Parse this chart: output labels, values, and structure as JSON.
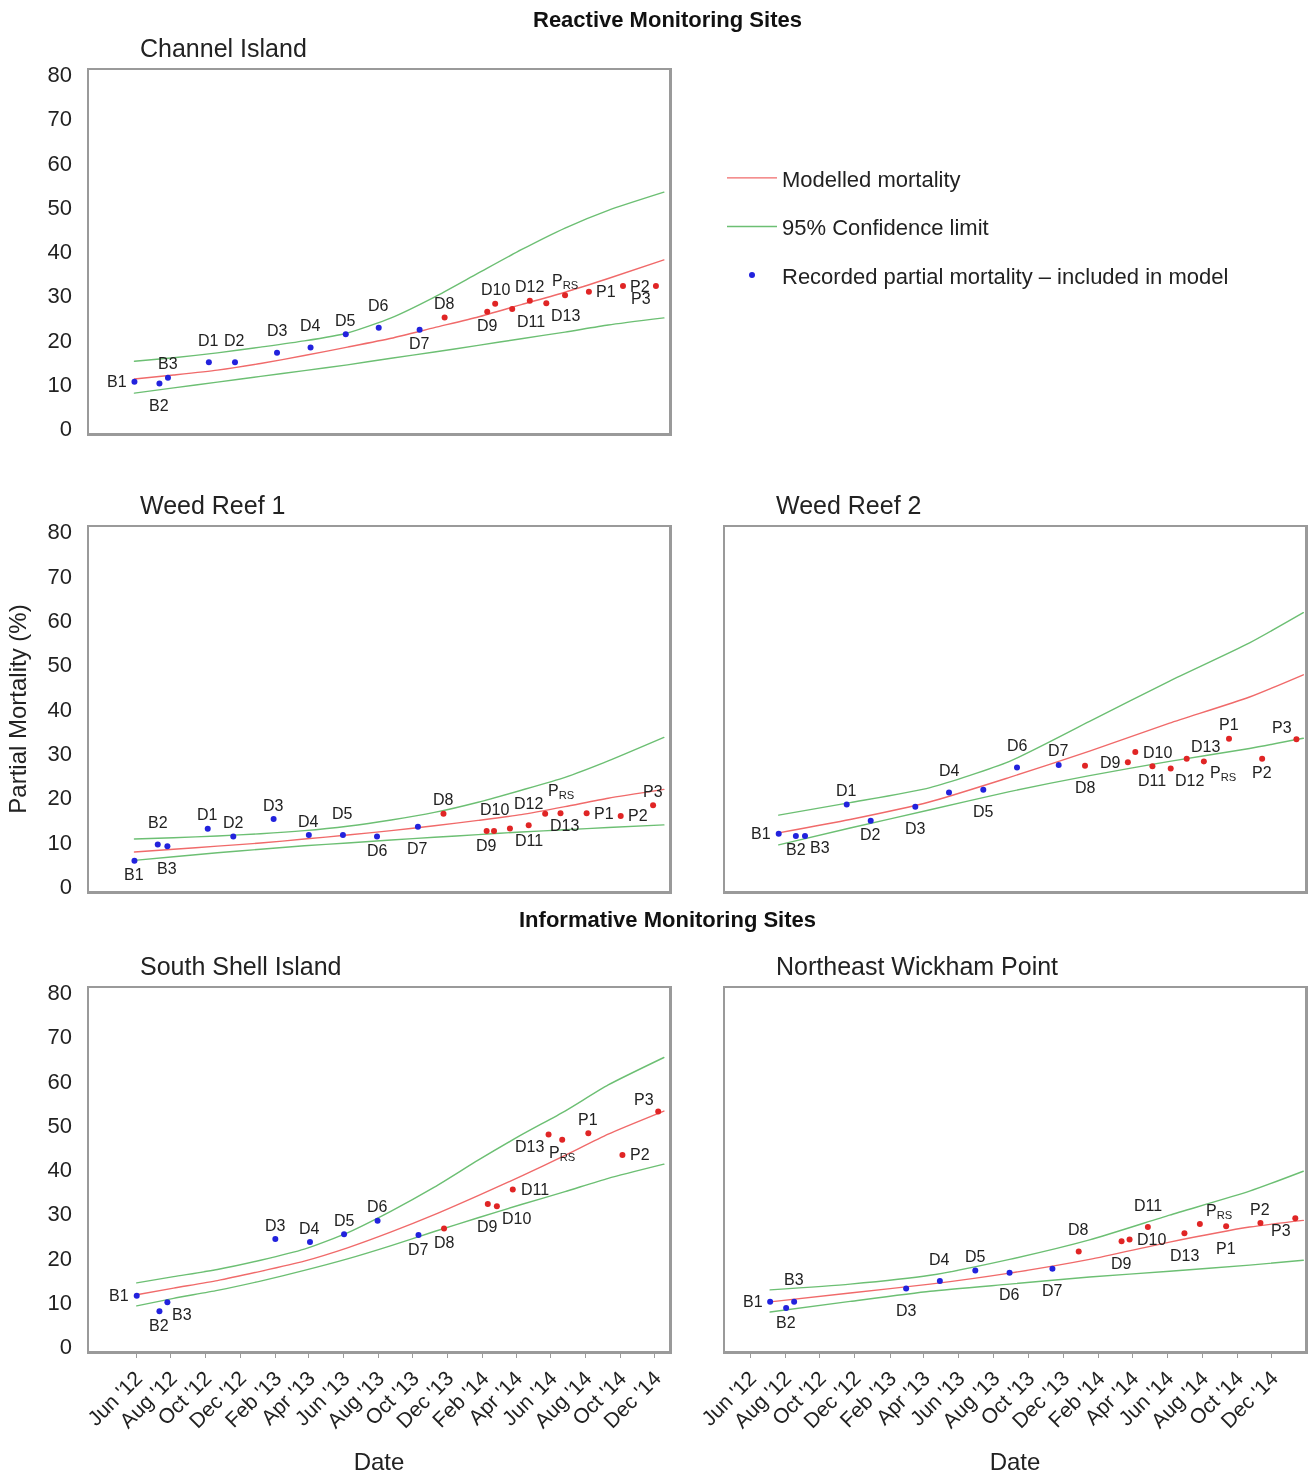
{
  "chart_data": [
    {
      "type": "scatter",
      "title": "Channel Island",
      "tick_labels": "y",
      "legend": "right",
      "xlim": [
        "2012-03-10",
        "2014-12-26"
      ],
      "ylim": [
        -1,
        81
      ],
      "yticks": [
        0,
        10,
        20,
        30,
        40,
        50,
        60,
        70,
        80
      ],
      "series": [
        {
          "name": "Modelled mortality",
          "type": "line",
          "marker": "none",
          "color": "#f06a6a",
          "x": [
            "2012-05-29",
            "2012-08-06",
            "2012-10-22",
            "2013-01-06",
            "2013-03-24",
            "2013-06-08",
            "2013-08-24",
            "2013-11-08",
            "2014-01-24",
            "2014-04-10",
            "2014-06-26",
            "2014-09-10",
            "2014-12-17"
          ],
          "values": [
            11.2,
            12.1,
            13.2,
            14.7,
            16.5,
            18.4,
            20.4,
            22.8,
            25.2,
            28.0,
            30.8,
            33.9,
            38.1
          ]
        },
        {
          "name": "95% Confidence limit",
          "type": "line",
          "marker": "none",
          "color": "#6cbf73",
          "x": [
            "2012-05-29",
            "2012-08-06",
            "2012-10-22",
            "2013-01-06",
            "2013-03-24",
            "2013-06-08",
            "2013-08-24",
            "2013-11-08",
            "2014-01-24",
            "2014-04-10",
            "2014-06-26",
            "2014-09-10",
            "2014-12-17"
          ],
          "values": [
            15.2,
            16.0,
            17.1,
            18.4,
            19.8,
            21.6,
            25.0,
            29.7,
            35.1,
            40.4,
            45.3,
            49.3,
            53.4
          ]
        },
        {
          "type": "line",
          "marker": "none",
          "color": "#6cbf73",
          "x": [
            "2012-05-29",
            "2012-08-06",
            "2012-10-22",
            "2013-01-06",
            "2013-03-24",
            "2013-06-08",
            "2013-08-24",
            "2013-11-08",
            "2014-01-24",
            "2014-04-10",
            "2014-06-26",
            "2014-09-10",
            "2014-12-17"
          ],
          "values": [
            8.0,
            9.2,
            10.5,
            11.8,
            13.1,
            14.4,
            15.9,
            17.3,
            18.8,
            20.3,
            21.8,
            23.4,
            25.0
          ]
        },
        {
          "name": "Recorded partial mortality – included in model",
          "type": "scatter",
          "marker": "circle",
          "color": "#2222dd",
          "x": [
            "2012-05-29",
            "2012-07-12",
            "2012-07-27",
            "2012-10-07",
            "2012-11-22",
            "2013-02-04",
            "2013-04-04",
            "2013-06-05",
            "2013-08-02",
            "2013-10-13"
          ],
          "values": [
            10.6,
            10.2,
            11.5,
            15.0,
            15.0,
            17.1,
            18.3,
            21.3,
            22.8,
            22.3
          ]
        },
        {
          "type": "scatter",
          "marker": "circle",
          "color": "#e02525",
          "x": [
            "2013-11-26",
            "2014-02-09",
            "2014-02-23",
            "2014-03-25",
            "2014-04-25",
            "2014-05-24",
            "2014-06-26",
            "2014-08-07",
            "2014-10-06",
            "2014-12-03"
          ],
          "values": [
            25.1,
            26.4,
            28.2,
            27.0,
            28.9,
            28.3,
            30.1,
            30.9,
            32.2,
            32.2
          ]
        }
      ],
      "annotations": [
        "Reactive Monitoring Sites",
        {
          "text": "B1",
          "x": "2012-05-29",
          "y": 10.6
        },
        {
          "text": "B2",
          "x": "2012-07-12",
          "y": 10.2
        },
        {
          "text": "B3",
          "x": "2012-07-27",
          "y": 11.5
        },
        {
          "text": "D1",
          "x": "2012-10-07",
          "y": 15.0
        },
        {
          "text": "D2",
          "x": "2012-11-22",
          "y": 15.0
        },
        {
          "text": "D3",
          "x": "2013-02-04",
          "y": 17.1
        },
        {
          "text": "D4",
          "x": "2013-04-04",
          "y": 18.3
        },
        {
          "text": "D5",
          "x": "2013-06-05",
          "y": 21.3
        },
        {
          "text": "D6",
          "x": "2013-08-02",
          "y": 22.8
        },
        {
          "text": "D7",
          "x": "2013-10-13",
          "y": 22.3
        },
        {
          "text": "D8",
          "x": "2013-11-26",
          "y": 25.1
        },
        {
          "text": "D9",
          "x": "2014-02-09",
          "y": 26.4
        },
        {
          "text": "D10",
          "x": "2014-02-23",
          "y": 28.2
        },
        {
          "text": "D11",
          "x": "2014-03-25",
          "y": 27.0
        },
        {
          "text": "D12",
          "x": "2014-04-25",
          "y": 28.9
        },
        {
          "text": "D13",
          "x": "2014-05-24",
          "y": 28.3
        },
        {
          "text": "P$_{RS}$",
          "x": "2014-06-26",
          "y": 30.1
        },
        {
          "text": "P1",
          "x": "2014-08-07",
          "y": 30.9
        },
        {
          "text": "P2",
          "x": "2014-10-06",
          "y": 32.2
        },
        {
          "text": "P3",
          "x": "2014-12-03",
          "y": 32.2
        }
      ]
    },
    {
      "type": "scatter",
      "title": "Weed Reef 1",
      "ylabel": "Partial Mortality (%)",
      "tick_labels": "y",
      "xlim": [
        "2012-03-10",
        "2014-12-26"
      ],
      "ylim": [
        -1,
        81
      ],
      "yticks": [
        0,
        10,
        20,
        30,
        40,
        50,
        60,
        70,
        80
      ],
      "series": [
        {
          "type": "line",
          "marker": "none",
          "color": "#f06a6a",
          "x": [
            "2012-05-29",
            "2012-08-06",
            "2012-10-22",
            "2013-01-06",
            "2013-03-24",
            "2013-06-08",
            "2013-08-24",
            "2013-11-08",
            "2014-01-24",
            "2014-04-10",
            "2014-06-26",
            "2014-09-10",
            "2014-12-17"
          ],
          "values": [
            7.8,
            8.4,
            9.1,
            9.8,
            10.7,
            11.6,
            12.6,
            13.7,
            14.9,
            16.2,
            18.0,
            19.9,
            21.9
          ]
        },
        {
          "type": "line",
          "marker": "none",
          "color": "#6cbf73",
          "x": [
            "2012-05-29",
            "2012-08-06",
            "2012-10-22",
            "2013-01-06",
            "2013-03-24",
            "2013-06-08",
            "2013-08-24",
            "2013-11-08",
            "2014-01-24",
            "2014-04-10",
            "2014-06-26",
            "2014-09-10",
            "2014-12-17"
          ],
          "values": [
            10.7,
            11.0,
            11.4,
            11.9,
            12.6,
            13.6,
            15.0,
            16.7,
            19.0,
            21.7,
            24.6,
            28.3,
            33.6
          ]
        },
        {
          "type": "line",
          "marker": "none",
          "color": "#6cbf73",
          "x": [
            "2012-05-29",
            "2012-08-06",
            "2012-10-22",
            "2013-01-06",
            "2013-03-24",
            "2013-06-08",
            "2013-08-24",
            "2013-11-08",
            "2014-01-24",
            "2014-04-10",
            "2014-06-26",
            "2014-09-10",
            "2014-12-17"
          ],
          "values": [
            5.9,
            6.7,
            7.6,
            8.4,
            9.2,
            9.8,
            10.5,
            11.1,
            11.7,
            12.3,
            12.8,
            13.3,
            13.9
          ]
        },
        {
          "type": "scatter",
          "marker": "circle",
          "color": "#2222dd",
          "x": [
            "2012-05-29",
            "2012-07-09",
            "2012-07-26",
            "2012-10-05",
            "2012-11-19",
            "2013-01-29",
            "2013-04-01",
            "2013-05-31",
            "2013-07-30",
            "2013-10-10"
          ],
          "values": [
            5.8,
            9.5,
            9.1,
            13.0,
            11.3,
            15.2,
            11.6,
            11.6,
            11.3,
            13.5
          ]
        },
        {
          "type": "scatter",
          "marker": "circle",
          "color": "#e02525",
          "x": [
            "2013-11-24",
            "2014-02-08",
            "2014-02-21",
            "2014-03-21",
            "2014-04-23",
            "2014-05-22",
            "2014-06-18",
            "2014-08-03",
            "2014-10-02",
            "2014-11-28"
          ],
          "values": [
            16.4,
            12.5,
            12.5,
            13.1,
            13.8,
            16.4,
            16.5,
            16.5,
            15.9,
            18.3
          ]
        }
      ],
      "annotations": [
        {
          "text": "B1",
          "x": "2012-05-29",
          "y": 5.8
        },
        {
          "text": "B2",
          "x": "2012-07-09",
          "y": 9.5
        },
        {
          "text": "B3",
          "x": "2012-07-26",
          "y": 9.1
        },
        {
          "text": "D1",
          "x": "2012-10-05",
          "y": 13.0
        },
        {
          "text": "D2",
          "x": "2012-11-19",
          "y": 11.3
        },
        {
          "text": "D3",
          "x": "2013-01-29",
          "y": 15.2
        },
        {
          "text": "D4",
          "x": "2013-04-01",
          "y": 11.6
        },
        {
          "text": "D5",
          "x": "2013-05-31",
          "y": 11.6
        },
        {
          "text": "D6",
          "x": "2013-07-30",
          "y": 11.3
        },
        {
          "text": "D7",
          "x": "2013-10-10",
          "y": 13.5
        },
        {
          "text": "D8",
          "x": "2013-11-24",
          "y": 16.4
        },
        {
          "text": "D9",
          "x": "2014-02-08",
          "y": 12.5
        },
        {
          "text": "D10",
          "x": "2014-02-21",
          "y": 12.5
        },
        {
          "text": "D11",
          "x": "2014-03-21",
          "y": 13.1
        },
        {
          "text": "D12",
          "x": "2014-04-23",
          "y": 13.8
        },
        {
          "text": "D13",
          "x": "2014-05-22",
          "y": 16.4
        },
        {
          "text": "P$_{RS}$",
          "x": "2014-06-18",
          "y": 16.5
        },
        {
          "text": "P1",
          "x": "2014-08-03",
          "y": 16.5
        },
        {
          "text": "P2",
          "x": "2014-10-02",
          "y": 15.9
        },
        {
          "text": "P3",
          "x": "2014-11-28",
          "y": 18.3
        }
      ]
    },
    {
      "type": "scatter",
      "title": "Weed Reef 2",
      "tick_labels": false,
      "xlim": [
        "2012-04-18",
        "2015-01-28"
      ],
      "ylim": [
        -1,
        81
      ],
      "series": [
        {
          "type": "line",
          "marker": "none",
          "color": "#f06a6a",
          "x": [
            "2012-07-21",
            "2012-11-23",
            "2013-04-12",
            "2013-08-29",
            "2014-01-16",
            "2014-06-05",
            "2014-10-23",
            "2015-01-25"
          ],
          "values": [
            12.1,
            15.1,
            19.1,
            24.6,
            30.5,
            36.8,
            42.7,
            47.7
          ]
        },
        {
          "type": "line",
          "marker": "none",
          "color": "#6cbf73",
          "x": [
            "2012-07-21",
            "2012-11-23",
            "2013-04-12",
            "2013-08-29",
            "2014-01-16",
            "2014-06-05",
            "2014-10-23",
            "2015-01-25"
          ],
          "values": [
            16.1,
            18.9,
            22.3,
            28.2,
            37.2,
            46.3,
            54.9,
            61.7
          ]
        },
        {
          "type": "line",
          "marker": "none",
          "color": "#6cbf73",
          "x": [
            "2012-07-21",
            "2012-11-23",
            "2013-04-12",
            "2013-08-29",
            "2014-01-16",
            "2014-06-05",
            "2014-10-23",
            "2015-01-25"
          ],
          "values": [
            9.4,
            13.2,
            17.3,
            21.4,
            25.0,
            28.2,
            31.1,
            33.4
          ]
        },
        {
          "type": "scatter",
          "marker": "circle",
          "color": "#2222dd",
          "x": [
            "2012-07-21",
            "2012-08-20",
            "2012-09-05",
            "2012-11-17",
            "2012-12-29",
            "2013-03-17",
            "2013-05-15",
            "2013-07-14",
            "2013-09-11",
            "2013-11-23"
          ],
          "values": [
            11.9,
            11.4,
            11.4,
            18.5,
            14.8,
            18.0,
            21.2,
            21.8,
            26.8,
            27.4
          ]
        },
        {
          "type": "scatter",
          "marker": "circle",
          "color": "#e02525",
          "x": [
            "2014-01-08",
            "2014-03-24",
            "2014-04-06",
            "2014-05-06",
            "2014-06-07",
            "2014-07-05",
            "2014-08-04",
            "2014-09-17",
            "2014-11-14",
            "2015-01-13"
          ],
          "values": [
            27.2,
            28.0,
            30.3,
            27.1,
            26.6,
            28.8,
            28.2,
            33.3,
            28.8,
            33.2
          ]
        }
      ],
      "annotations": [
        {
          "text": "B1",
          "x": "2012-07-21",
          "y": 11.9
        },
        {
          "text": "B2",
          "x": "2012-08-20",
          "y": 11.4
        },
        {
          "text": "B3",
          "x": "2012-09-05",
          "y": 11.4
        },
        {
          "text": "D1",
          "x": "2012-11-17",
          "y": 18.5
        },
        {
          "text": "D2",
          "x": "2012-12-29",
          "y": 14.8
        },
        {
          "text": "D3",
          "x": "2013-03-17",
          "y": 18.0
        },
        {
          "text": "D4",
          "x": "2013-05-15",
          "y": 21.2
        },
        {
          "text": "D5",
          "x": "2013-07-14",
          "y": 21.8
        },
        {
          "text": "D6",
          "x": "2013-09-11",
          "y": 26.8
        },
        {
          "text": "D7",
          "x": "2013-11-23",
          "y": 27.4
        },
        {
          "text": "D8",
          "x": "2014-01-08",
          "y": 27.2
        },
        {
          "text": "D9",
          "x": "2014-03-24",
          "y": 28.0
        },
        {
          "text": "D10",
          "x": "2014-04-06",
          "y": 30.3
        },
        {
          "text": "D11",
          "x": "2014-05-06",
          "y": 27.1
        },
        {
          "text": "D12",
          "x": "2014-06-07",
          "y": 26.6
        },
        {
          "text": "D13",
          "x": "2014-07-05",
          "y": 28.8
        },
        {
          "text": "P$_{RS}$",
          "x": "2014-08-04",
          "y": 28.2
        },
        {
          "text": "P1",
          "x": "2014-09-17",
          "y": 33.3
        },
        {
          "text": "P2",
          "x": "2014-11-14",
          "y": 28.8
        },
        {
          "text": "P3",
          "x": "2015-01-13",
          "y": 33.2
        }
      ]
    },
    {
      "type": "scatter",
      "title": "South Shell Island",
      "xlabel": "Date",
      "xlim": [
        "2012-03-10",
        "2014-12-26"
      ],
      "ylim": [
        -1,
        81
      ],
      "yticks": [
        0,
        10,
        20,
        30,
        40,
        50,
        60,
        70,
        80
      ],
      "xticks": [
        {
          "value": "2012-06-01",
          "label": "Jun '12"
        },
        {
          "value": "2012-08-01",
          "label": "Aug '12"
        },
        {
          "value": "2012-10-01",
          "label": "Oct '12"
        },
        {
          "value": "2012-12-01",
          "label": "Dec '12"
        },
        {
          "value": "2013-02-01",
          "label": "Feb '13"
        },
        {
          "value": "2013-04-01",
          "label": "Apr '13"
        },
        {
          "value": "2013-06-01",
          "label": "Jun '13"
        },
        {
          "value": "2013-08-01",
          "label": "Aug '13"
        },
        {
          "value": "2013-10-01",
          "label": "Oct '13"
        },
        {
          "value": "2013-12-01",
          "label": "Dec '13"
        },
        {
          "value": "2014-02-01",
          "label": "Feb '14"
        },
        {
          "value": "2014-04-01",
          "label": "Apr '14"
        },
        {
          "value": "2014-06-01",
          "label": "Jun '14"
        },
        {
          "value": "2014-08-01",
          "label": "Aug '14"
        },
        {
          "value": "2014-10-01",
          "label": "Oct '14"
        },
        {
          "value": "2014-12-01",
          "label": "Dec '14"
        }
      ],
      "series": [
        {
          "type": "line",
          "marker": "none",
          "color": "#f06a6a",
          "x": [
            "2012-06-02",
            "2012-08-06",
            "2012-10-22",
            "2013-01-06",
            "2013-03-24",
            "2013-06-08",
            "2013-08-24",
            "2013-11-08",
            "2014-01-24",
            "2014-04-10",
            "2014-06-26",
            "2014-09-10",
            "2014-12-17"
          ],
          "values": [
            11.7,
            13.2,
            14.9,
            17.0,
            19.3,
            22.3,
            25.9,
            29.8,
            34.1,
            38.5,
            43.2,
            48.0,
            53.2
          ]
        },
        {
          "type": "line",
          "marker": "none",
          "color": "#6cbf73",
          "x": [
            "2012-06-02",
            "2012-08-06",
            "2012-10-22",
            "2013-01-06",
            "2013-03-24",
            "2013-06-08",
            "2013-08-24",
            "2013-11-08",
            "2014-01-24",
            "2014-04-10",
            "2014-06-26",
            "2014-09-10",
            "2014-12-17"
          ],
          "values": [
            14.4,
            15.8,
            17.4,
            19.5,
            22.0,
            25.7,
            30.6,
            36.0,
            42.1,
            47.8,
            53.2,
            59.1,
            65.3
          ]
        },
        {
          "type": "line",
          "marker": "none",
          "color": "#6cbf73",
          "x": [
            "2012-06-02",
            "2012-08-06",
            "2012-10-22",
            "2013-01-06",
            "2013-03-24",
            "2013-06-08",
            "2013-08-24",
            "2013-11-08",
            "2014-01-24",
            "2014-04-10",
            "2014-06-26",
            "2014-09-10",
            "2014-12-17"
          ],
          "values": [
            9.2,
            10.9,
            12.7,
            14.8,
            17.2,
            19.8,
            22.8,
            26.0,
            29.1,
            32.1,
            35.0,
            38.0,
            41.2
          ]
        },
        {
          "type": "scatter",
          "marker": "circle",
          "color": "#2222dd",
          "x": [
            "2012-06-02",
            "2012-07-12",
            "2012-07-26",
            "2013-02-01",
            "2013-04-03",
            "2013-06-02",
            "2013-07-31",
            "2013-10-11"
          ],
          "values": [
            11.5,
            8.0,
            10.0,
            24.3,
            23.6,
            25.4,
            28.4,
            25.2
          ]
        },
        {
          "type": "scatter",
          "marker": "circle",
          "color": "#e02525",
          "x": [
            "2013-11-25",
            "2014-02-10",
            "2014-02-26",
            "2014-03-26",
            "2014-05-28",
            "2014-06-21",
            "2014-08-06",
            "2014-10-05",
            "2014-12-07"
          ],
          "values": [
            26.7,
            32.2,
            31.7,
            35.5,
            47.9,
            46.7,
            48.2,
            43.3,
            53.1
          ]
        }
      ],
      "annotations": [
        "Informative Monitoring Sites",
        {
          "text": "B1",
          "x": "2012-06-02",
          "y": 11.5
        },
        {
          "text": "B2",
          "x": "2012-07-12",
          "y": 8.0
        },
        {
          "text": "B3",
          "x": "2012-07-26",
          "y": 10.0
        },
        {
          "text": "D3",
          "x": "2013-02-01",
          "y": 24.3
        },
        {
          "text": "D4",
          "x": "2013-04-03",
          "y": 23.6
        },
        {
          "text": "D5",
          "x": "2013-06-02",
          "y": 25.4
        },
        {
          "text": "D6",
          "x": "2013-07-31",
          "y": 28.4
        },
        {
          "text": "D7",
          "x": "2013-10-11",
          "y": 25.2
        },
        {
          "text": "D8",
          "x": "2013-11-25",
          "y": 26.7
        },
        {
          "text": "D9",
          "x": "2014-02-10",
          "y": 32.2
        },
        {
          "text": "D10",
          "x": "2014-02-26",
          "y": 31.7
        },
        {
          "text": "D11",
          "x": "2014-03-26",
          "y": 35.5
        },
        {
          "text": "D13",
          "x": "2014-05-28",
          "y": 47.9
        },
        {
          "text": "P$_{RS}$",
          "x": "2014-06-21",
          "y": 46.7
        },
        {
          "text": "P1",
          "x": "2014-08-06",
          "y": 48.2
        },
        {
          "text": "P2",
          "x": "2014-10-05",
          "y": 43.3
        },
        {
          "text": "P3",
          "x": "2014-12-07",
          "y": 53.1
        }
      ]
    },
    {
      "type": "scatter",
      "title": "Northeast Wickham Point",
      "xlabel": "Date",
      "tick_labels": "x",
      "xlim": [
        "2012-04-18",
        "2015-01-28"
      ],
      "ylim": [
        -1,
        81
      ],
      "xticks": [
        {
          "value": "2012-06-01",
          "label": "Jun '12"
        },
        {
          "value": "2012-08-01",
          "label": "Aug '12"
        },
        {
          "value": "2012-10-01",
          "label": "Oct '12"
        },
        {
          "value": "2012-12-01",
          "label": "Dec '12"
        },
        {
          "value": "2013-02-01",
          "label": "Feb '13"
        },
        {
          "value": "2013-04-01",
          "label": "Apr '13"
        },
        {
          "value": "2013-06-01",
          "label": "Jun '13"
        },
        {
          "value": "2013-08-01",
          "label": "Aug '13"
        },
        {
          "value": "2013-10-01",
          "label": "Oct '13"
        },
        {
          "value": "2013-12-01",
          "label": "Dec '13"
        },
        {
          "value": "2014-02-01",
          "label": "Feb '14"
        },
        {
          "value": "2014-04-01",
          "label": "Apr '14"
        },
        {
          "value": "2014-06-01",
          "label": "Jun '14"
        },
        {
          "value": "2014-08-01",
          "label": "Aug '14"
        },
        {
          "value": "2014-10-01",
          "label": "Oct '14"
        },
        {
          "value": "2014-12-01",
          "label": "Dec '14"
        }
      ],
      "series": [
        {
          "type": "line",
          "marker": "none",
          "color": "#f06a6a",
          "x": [
            "2012-07-06",
            "2012-11-23",
            "2013-04-12",
            "2013-08-29",
            "2014-01-16",
            "2014-06-05",
            "2014-10-23",
            "2015-01-25"
          ],
          "values": [
            10.1,
            12.1,
            14.1,
            16.6,
            19.7,
            23.6,
            27.0,
            28.5
          ]
        },
        {
          "type": "line",
          "marker": "none",
          "color": "#6cbf73",
          "x": [
            "2012-07-06",
            "2012-11-23",
            "2013-04-12",
            "2013-08-29",
            "2014-01-16",
            "2014-06-05",
            "2014-10-23",
            "2015-01-25"
          ],
          "values": [
            12.8,
            14.1,
            16.1,
            19.7,
            24.1,
            29.7,
            35.1,
            39.6
          ]
        },
        {
          "type": "line",
          "marker": "none",
          "color": "#6cbf73",
          "x": [
            "2012-07-06",
            "2012-11-23",
            "2013-04-12",
            "2013-08-29",
            "2014-01-16",
            "2014-06-05",
            "2014-10-23",
            "2015-01-25"
          ],
          "values": [
            7.8,
            10.2,
            12.5,
            14.1,
            15.7,
            17.0,
            18.4,
            19.5
          ]
        },
        {
          "type": "scatter",
          "marker": "circle",
          "color": "#2222dd",
          "x": [
            "2012-07-06",
            "2012-08-03",
            "2012-08-17",
            "2013-03-01",
            "2013-04-29",
            "2013-06-30",
            "2013-08-29",
            "2013-11-12"
          ],
          "values": [
            10.1,
            8.7,
            10.1,
            13.1,
            14.8,
            17.2,
            16.7,
            17.6
          ]
        },
        {
          "type": "scatter",
          "marker": "circle",
          "color": "#e02525",
          "x": [
            "2013-12-28",
            "2014-03-13",
            "2014-03-27",
            "2014-04-28",
            "2014-07-01",
            "2014-07-28",
            "2014-09-12",
            "2014-11-11",
            "2015-01-11"
          ],
          "values": [
            21.5,
            23.8,
            24.2,
            27.0,
            25.6,
            27.7,
            27.2,
            27.9,
            29.0
          ]
        }
      ],
      "annotations": [
        {
          "text": "B1",
          "x": "2012-07-06",
          "y": 10.1
        },
        {
          "text": "B2",
          "x": "2012-08-03",
          "y": 8.7
        },
        {
          "text": "B3",
          "x": "2012-08-17",
          "y": 10.1
        },
        {
          "text": "D3",
          "x": "2013-03-01",
          "y": 13.1
        },
        {
          "text": "D4",
          "x": "2013-04-29",
          "y": 14.8
        },
        {
          "text": "D5",
          "x": "2013-06-30",
          "y": 17.2
        },
        {
          "text": "D6",
          "x": "2013-08-29",
          "y": 16.7
        },
        {
          "text": "D7",
          "x": "2013-11-12",
          "y": 17.6
        },
        {
          "text": "D8",
          "x": "2013-12-28",
          "y": 21.5
        },
        {
          "text": "D9",
          "x": "2014-03-13",
          "y": 23.8
        },
        {
          "text": "D10",
          "x": "2014-03-27",
          "y": 24.2
        },
        {
          "text": "D11",
          "x": "2014-04-28",
          "y": 27.0
        },
        {
          "text": "D13",
          "x": "2014-07-01",
          "y": 25.6
        },
        {
          "text": "P$_{RS}$",
          "x": "2014-07-28",
          "y": 27.7
        },
        {
          "text": "P1",
          "x": "2014-09-12",
          "y": 27.2
        },
        {
          "text": "P2",
          "x": "2014-11-11",
          "y": 27.9
        },
        {
          "text": "P3",
          "x": "2015-01-11",
          "y": 29.0
        }
      ]
    }
  ]
}
